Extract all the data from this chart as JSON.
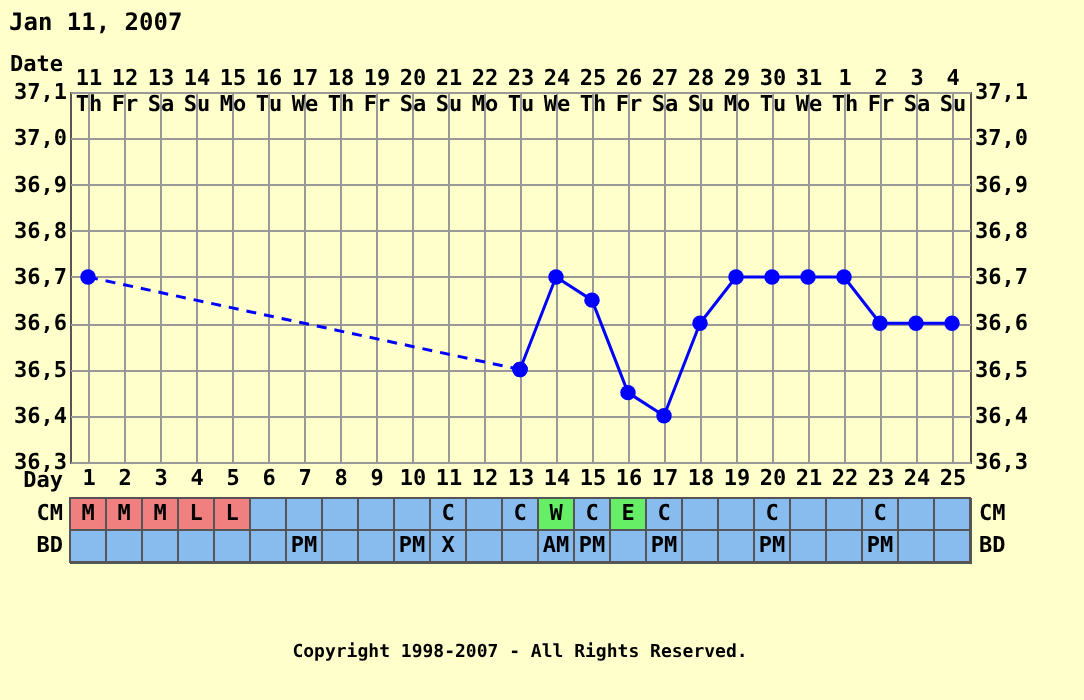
{
  "chart_data": [
    {
      "type": "line",
      "title": "Jan 11, 2007",
      "xlabel": "Date",
      "x2label": "Day",
      "x": [
        "2007-01-11",
        "2007-01-12",
        "2007-01-13",
        "2007-01-14",
        "2007-01-15",
        "2007-01-16",
        "2007-01-17",
        "2007-01-18",
        "2007-01-19",
        "2007-01-20",
        "2007-01-21",
        "2007-01-22",
        "2007-01-23",
        "2007-01-24",
        "2007-01-25",
        "2007-01-26",
        "2007-01-27",
        "2007-01-28",
        "2007-01-29",
        "2007-01-30",
        "2007-01-31",
        "2007-02-01",
        "2007-02-02",
        "2007-02-03",
        "2007-02-04"
      ],
      "xlim": [
        "2007-01-10T12:00",
        "2007-02-04T12:00"
      ],
      "xticks": [
        {
          "value": "2007-01-11",
          "label": "11 Th"
        },
        {
          "value": "2007-01-12",
          "label": "12 Fr"
        },
        {
          "value": "2007-01-13",
          "label": "13 Sa"
        },
        {
          "value": "2007-01-14",
          "label": "14 Su"
        },
        {
          "value": "2007-01-15",
          "label": "15 Mo"
        },
        {
          "value": "2007-01-16",
          "label": "16 Tu"
        },
        {
          "value": "2007-01-17",
          "label": "17 We"
        },
        {
          "value": "2007-01-18",
          "label": "18 Th"
        },
        {
          "value": "2007-01-19",
          "label": "19 Fr"
        },
        {
          "value": "2007-01-20",
          "label": "20 Sa"
        },
        {
          "value": "2007-01-21",
          "label": "21 Su"
        },
        {
          "value": "2007-01-22",
          "label": "22 Mo"
        },
        {
          "value": "2007-01-23",
          "label": "23 Tu"
        },
        {
          "value": "2007-01-24",
          "label": "24 We"
        },
        {
          "value": "2007-01-25",
          "label": "25 Th"
        },
        {
          "value": "2007-01-26",
          "label": "26 Fr"
        },
        {
          "value": "2007-01-27",
          "label": "27 Sa"
        },
        {
          "value": "2007-01-28",
          "label": "28 Su"
        },
        {
          "value": "2007-01-29",
          "label": "29 Mo"
        },
        {
          "value": "2007-01-30",
          "label": "30 Tu"
        },
        {
          "value": "2007-01-31",
          "label": "31 We"
        },
        {
          "value": "2007-02-01",
          "label": "1 Th"
        },
        {
          "value": "2007-02-02",
          "label": "2 Fr"
        },
        {
          "value": "2007-02-03",
          "label": "3 Sa"
        },
        {
          "value": "2007-02-04",
          "label": "4 Su"
        }
      ],
      "x2lim": [
        0.5,
        25.5
      ],
      "x2ticks": [
        1,
        2,
        3,
        4,
        5,
        6,
        7,
        8,
        9,
        10,
        11,
        12,
        13,
        14,
        15,
        16,
        17,
        18,
        19,
        20,
        21,
        22,
        23,
        24,
        25
      ],
      "series": [
        {
          "color": "#0000ff",
          "line_style": "dashed",
          "values": [
            36.7,
            null,
            null,
            null,
            null,
            null,
            null,
            null,
            null,
            null,
            null,
            null,
            36.5,
            null,
            null,
            null,
            null,
            null,
            null,
            null,
            null,
            null,
            null,
            null,
            null
          ]
        },
        {
          "color": "#0000ff",
          "line_style": "solid",
          "values": [
            null,
            null,
            null,
            null,
            null,
            null,
            null,
            null,
            null,
            null,
            null,
            null,
            36.5,
            36.7,
            36.65,
            36.45,
            36.4,
            36.6,
            36.7,
            36.7,
            36.7,
            36.7,
            36.6,
            36.6,
            36.6
          ]
        }
      ],
      "ylim": [
        36.3,
        37.1
      ],
      "yticks": [
        {
          "value": 36.3,
          "label": "36,3"
        },
        {
          "value": 36.4,
          "label": "36,4"
        },
        {
          "value": 36.5,
          "label": "36,5"
        },
        {
          "value": 36.6,
          "label": "36,6"
        },
        {
          "value": 36.7,
          "label": "36,7"
        },
        {
          "value": 36.8,
          "label": "36,8"
        },
        {
          "value": 36.9,
          "label": "36,9"
        },
        {
          "value": 37.0,
          "label": "37,0"
        },
        {
          "value": 37.1,
          "label": "37,1"
        }
      ],
      "y2lim": [
        36.3,
        37.1
      ],
      "y2ticks": [
        {
          "value": 36.3,
          "label": "36,3"
        },
        {
          "value": 36.4,
          "label": "36,4"
        },
        {
          "value": 36.5,
          "label": "36,5"
        },
        {
          "value": 36.6,
          "label": "36,6"
        },
        {
          "value": 36.7,
          "label": "36,7"
        },
        {
          "value": 36.8,
          "label": "36,8"
        },
        {
          "value": 36.9,
          "label": "36,9"
        },
        {
          "value": 37.0,
          "label": "37,0"
        },
        {
          "value": 37.1,
          "label": "37,1"
        }
      ],
      "grid": true,
      "marker": "circle"
    },
    {
      "type": "other",
      "y_categories": [
        "CM",
        "BD"
      ],
      "y2_categories": [
        "CM",
        "BD"
      ],
      "cell_labels": [
        [
          "M",
          "M",
          "M",
          "L",
          "L",
          null,
          null,
          null,
          null,
          null,
          "C",
          null,
          "C",
          "W",
          "C",
          "E",
          "C",
          null,
          null,
          "C",
          null,
          null,
          "C",
          null,
          null
        ],
        [
          null,
          null,
          null,
          null,
          null,
          null,
          "PM",
          null,
          null,
          "PM",
          "X",
          null,
          null,
          "AM",
          "PM",
          null,
          "PM",
          null,
          null,
          "PM",
          null,
          null,
          "PM",
          null,
          null
        ]
      ],
      "colors": [
        [
          "#f08080",
          "#f08080",
          "#f08080",
          "#f08080",
          "#f08080",
          "#88bbee",
          "#88bbee",
          "#88bbee",
          "#88bbee",
          "#88bbee",
          "#88bbee",
          "#88bbee",
          "#88bbee",
          "#66ee66",
          "#88bbee",
          "#66ee66",
          "#88bbee",
          "#88bbee",
          "#88bbee",
          "#88bbee",
          "#88bbee",
          "#88bbee",
          "#88bbee",
          "#88bbee",
          "#88bbee"
        ],
        [
          "#88bbee",
          "#88bbee",
          "#88bbee",
          "#88bbee",
          "#88bbee",
          "#88bbee",
          "#88bbee",
          "#88bbee",
          "#88bbee",
          "#88bbee",
          "#88bbee",
          "#88bbee",
          "#88bbee",
          "#88bbee",
          "#88bbee",
          "#88bbee",
          "#88bbee",
          "#88bbee",
          "#88bbee",
          "#88bbee",
          "#88bbee",
          "#88bbee",
          "#88bbee",
          "#88bbee",
          "#88bbee"
        ]
      ],
      "annotations": [
        "Copyright 1998-2007 - All Rights Reserved."
      ]
    }
  ]
}
